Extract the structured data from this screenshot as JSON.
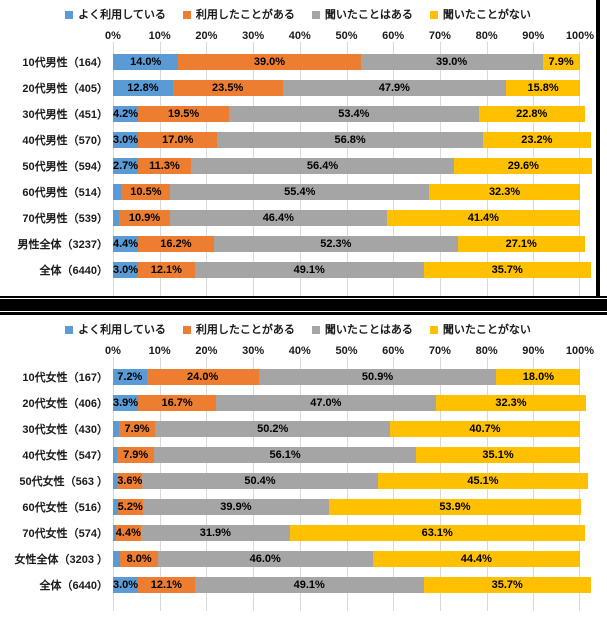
{
  "colors": {
    "series_blue": "#5B9BD5",
    "series_orange": "#ED7D31",
    "series_gray": "#A5A5A5",
    "series_yellow": "#FFC000",
    "gridline": "#D9D9D9",
    "label_text": "#000000"
  },
  "chart_data": [
    {
      "type": "bar",
      "stacked": true,
      "orientation": "horizontal",
      "group": "male",
      "legend_position": "top",
      "grid": true,
      "xlim": [
        0,
        100
      ],
      "x_ticks": [
        "0%",
        "10%",
        "20%",
        "30%",
        "40%",
        "50%",
        "60%",
        "70%",
        "80%",
        "90%",
        "100%"
      ],
      "categories": [
        "10代男性（164）",
        "20代男性（405）",
        "30代男性（451）",
        "40代男性（570）",
        "50代男性（594）",
        "60代男性（514）",
        "70代男性（539）",
        "男性全体（3237）",
        "全体（6440）"
      ],
      "series": [
        {
          "name": "よく利用している",
          "color": "#5B9BD5",
          "values": [
            14.0,
            12.8,
            4.2,
            3.0,
            2.7,
            1.8,
            1.3,
            4.4,
            3.0
          ],
          "labels": [
            "14.0%",
            "12.8%",
            "4.2%",
            "3.0%",
            "2.7%",
            "",
            "",
            "4.4%",
            "3.0%"
          ]
        },
        {
          "name": "利用したことがある",
          "color": "#ED7D31",
          "values": [
            39.0,
            23.5,
            19.5,
            17.0,
            11.3,
            10.5,
            10.9,
            16.2,
            12.1
          ],
          "labels": [
            "39.0%",
            "23.5%",
            "19.5%",
            "17.0%",
            "11.3%",
            "10.5%",
            "10.9%",
            "16.2%",
            "12.1%"
          ]
        },
        {
          "name": "聞いたことはある",
          "color": "#A5A5A5",
          "values": [
            39.0,
            47.9,
            53.4,
            56.8,
            56.4,
            55.4,
            46.4,
            52.3,
            49.1
          ],
          "labels": [
            "39.0%",
            "47.9%",
            "53.4%",
            "56.8%",
            "56.4%",
            "55.4%",
            "46.4%",
            "52.3%",
            "49.1%"
          ]
        },
        {
          "name": "聞いたことがない",
          "color": "#FFC000",
          "values": [
            7.9,
            15.8,
            22.8,
            23.2,
            29.6,
            32.3,
            41.4,
            27.1,
            35.7
          ],
          "labels": [
            "7.9%",
            "15.8%",
            "22.8%",
            "23.2%",
            "29.6%",
            "32.3%",
            "41.4%",
            "27.1%",
            "35.7%"
          ]
        }
      ]
    },
    {
      "type": "bar",
      "stacked": true,
      "orientation": "horizontal",
      "group": "female",
      "legend_position": "top",
      "grid": true,
      "xlim": [
        0,
        100
      ],
      "x_ticks": [
        "0%",
        "10%",
        "20%",
        "30%",
        "40%",
        "50%",
        "60%",
        "70%",
        "80%",
        "90%",
        "100%"
      ],
      "categories": [
        "10代女性（167）",
        "20代女性（406）",
        "30代女性（430）",
        "40代女性（547）",
        "50代女性（563 ）",
        "60代女性（516）",
        "70代女性（574）",
        "女性全体（3203 ）",
        "全体（6440）"
      ],
      "series": [
        {
          "name": "よく利用している",
          "color": "#5B9BD5",
          "values": [
            7.2,
            3.9,
            1.2,
            0.9,
            0.9,
            1.0,
            0.6,
            1.6,
            3.0
          ],
          "labels": [
            "7.2%",
            "3.9%",
            "",
            "",
            "",
            "",
            "",
            "",
            "3.0%"
          ]
        },
        {
          "name": "利用したことがある",
          "color": "#ED7D31",
          "values": [
            24.0,
            16.7,
            7.9,
            7.9,
            3.6,
            5.2,
            4.4,
            8.0,
            12.1
          ],
          "labels": [
            "24.0%",
            "16.7%",
            "7.9%",
            "7.9%",
            "3.6%",
            "5.2%",
            "4.4%",
            "8.0%",
            "12.1%"
          ]
        },
        {
          "name": "聞いたことはある",
          "color": "#A5A5A5",
          "values": [
            50.9,
            47.0,
            50.2,
            56.1,
            50.4,
            39.9,
            31.9,
            46.0,
            49.1
          ],
          "labels": [
            "50.9%",
            "47.0%",
            "50.2%",
            "56.1%",
            "50.4%",
            "39.9%",
            "31.9%",
            "46.0%",
            "49.1%"
          ]
        },
        {
          "name": "聞いたことがない",
          "color": "#FFC000",
          "values": [
            18.0,
            32.3,
            40.7,
            35.1,
            45.1,
            53.9,
            63.1,
            44.4,
            35.7
          ],
          "labels": [
            "18.0%",
            "32.3%",
            "40.7%",
            "35.1%",
            "45.1%",
            "53.9%",
            "63.1%",
            "44.4%",
            "35.7%"
          ]
        }
      ]
    }
  ]
}
